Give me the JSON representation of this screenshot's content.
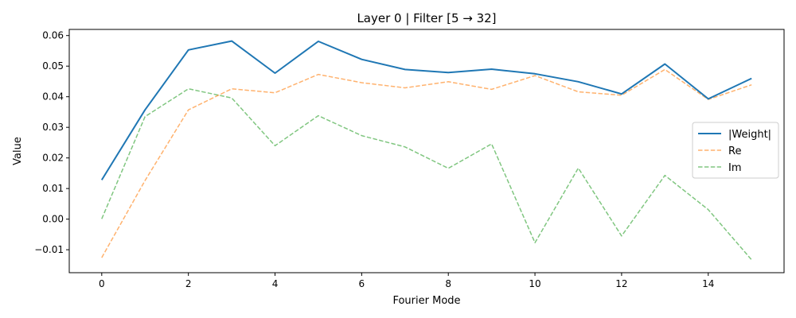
{
  "chart_data": {
    "type": "line",
    "title": "Layer 0 | Filter [5 → 32]",
    "xlabel": "Fourier Mode",
    "ylabel": "Value",
    "xlim": [
      -0.75,
      15.75
    ],
    "ylim": [
      -0.0175,
      0.062
    ],
    "x_ticks": [
      0,
      2,
      4,
      6,
      8,
      10,
      12,
      14
    ],
    "x_tick_labels": [
      "0",
      "2",
      "4",
      "6",
      "8",
      "10",
      "12",
      "14"
    ],
    "y_ticks": [
      -0.01,
      0.0,
      0.01,
      0.02,
      0.03,
      0.04,
      0.05,
      0.06
    ],
    "y_tick_labels": [
      "−0.01",
      "0.00",
      "0.01",
      "0.02",
      "0.03",
      "0.04",
      "0.05",
      "0.06"
    ],
    "grid": false,
    "legend_position": "center-right",
    "x": [
      0,
      1,
      2,
      3,
      4,
      5,
      6,
      7,
      8,
      9,
      10,
      11,
      12,
      13,
      14,
      15
    ],
    "series": [
      {
        "name": "|Weight|",
        "color": "#1f77b4",
        "style": "solid",
        "values": [
          0.0128,
          0.0357,
          0.0553,
          0.0582,
          0.0477,
          0.0581,
          0.0522,
          0.0489,
          0.0479,
          0.049,
          0.0475,
          0.0449,
          0.0409,
          0.0507,
          0.0393,
          0.046
        ]
      },
      {
        "name": "Re",
        "color": "#ff7f0e",
        "style": "dashed",
        "values": [
          -0.0126,
          0.0126,
          0.0357,
          0.0426,
          0.0413,
          0.0473,
          0.0446,
          0.0429,
          0.0449,
          0.0424,
          0.0469,
          0.0416,
          0.0405,
          0.0489,
          0.0391,
          0.0439
        ]
      },
      {
        "name": "Im",
        "color": "#2ca02c",
        "style": "dashed",
        "values": [
          0.0001,
          0.0335,
          0.0426,
          0.0396,
          0.024,
          0.0338,
          0.0273,
          0.0236,
          0.0166,
          0.0246,
          -0.0077,
          0.0167,
          -0.0055,
          0.0143,
          0.0031,
          -0.0133
        ]
      }
    ]
  }
}
